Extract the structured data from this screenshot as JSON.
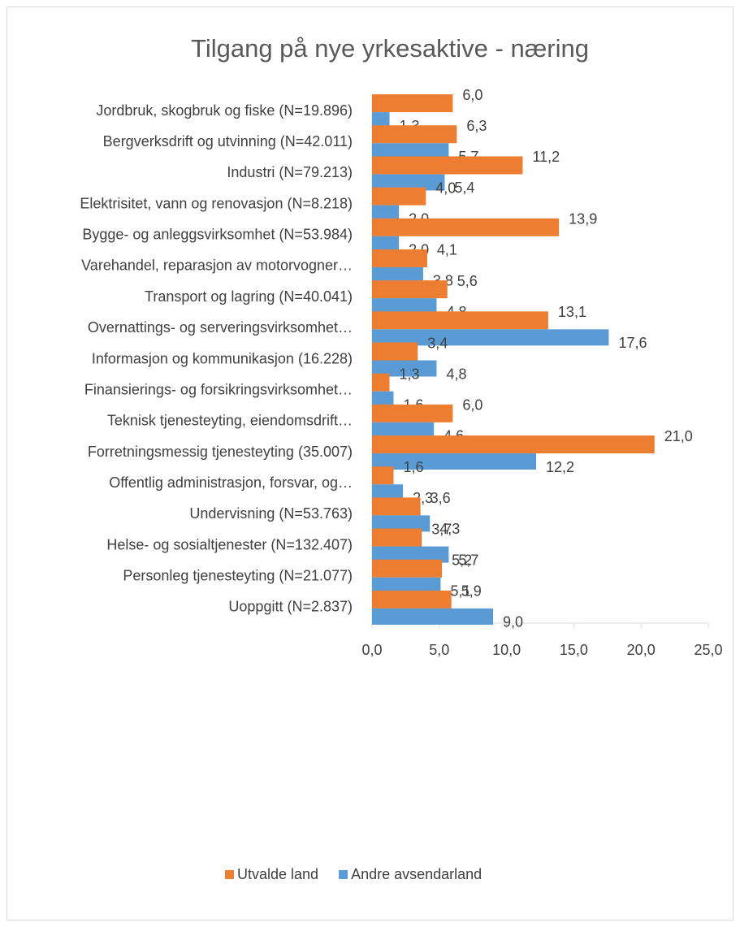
{
  "chart_data": {
    "type": "bar",
    "orientation": "horizontal",
    "title": "Tilgang på nye yrkesaktive - næring",
    "categories": [
      "Jordbruk, skogbruk og fiske (N=19.896)",
      "Bergverksdrift og utvinning (N=42.011)",
      "Industri (N=79.213)",
      "Elektrisitet, vann og renovasjon (N=8.218)",
      "Bygge- og anleggsvirksomhet (N=53.984)",
      "Varehandel, reparasjon av motorvogner…",
      "Transport og lagring (N=40.041)",
      "Overnattings- og serveringsvirksomhet…",
      "Informasjon og kommunikasjon (16.228)",
      "Finansierings- og forsikringsvirksomhet…",
      "Teknisk tjenesteyting, eiendomsdrift…",
      "Forretningsmessig tjenesteyting (35.007)",
      "Offentlig administrasjon, forsvar, og…",
      "Undervisning (N=53.763)",
      "Helse- og sosialtjenester (N=132.407)",
      "Personleg tjenesteyting (N=21.077)",
      "Uoppgitt (N=2.837)"
    ],
    "series": [
      {
        "name": "Utvalde land",
        "color": "#ed7d31",
        "values": [
          6.0,
          6.3,
          11.2,
          4.0,
          13.9,
          4.1,
          5.6,
          13.1,
          3.4,
          1.3,
          6.0,
          21.0,
          1.6,
          3.6,
          3.7,
          5.2,
          5.9
        ],
        "value_labels": [
          "6,0",
          "6,3",
          "11,2",
          "4,0",
          "13,9",
          "4,1",
          "5,6",
          "13,1",
          "3,4",
          "1,3",
          "6,0",
          "21,0",
          "1,6",
          "3,6",
          "3,7",
          "5,2",
          "5,9"
        ]
      },
      {
        "name": "Andre avsendarland",
        "color": "#5b9bd5",
        "values": [
          1.3,
          5.7,
          5.4,
          2.0,
          2.0,
          3.8,
          4.8,
          17.6,
          4.8,
          1.6,
          4.6,
          12.2,
          2.3,
          4.3,
          5.7,
          5.1,
          9.0
        ],
        "value_labels": [
          "1,3",
          "5,7",
          "5,4",
          "2,0",
          "2,0",
          "3,8",
          "4,8",
          "17,6",
          "4,8",
          "1,6",
          "4,6",
          "12,2",
          "2,3",
          "4,3",
          "5,7",
          "5,1",
          "9,0"
        ]
      }
    ],
    "xlim": [
      0,
      25
    ],
    "xticks": [
      {
        "value": 0,
        "label": "0,0"
      },
      {
        "value": 5,
        "label": "5,0"
      },
      {
        "value": 10,
        "label": "10,0"
      },
      {
        "value": 15,
        "label": "15,0"
      },
      {
        "value": 20,
        "label": "20,0"
      },
      {
        "value": 25,
        "label": "25,0"
      }
    ],
    "grid": false,
    "legend": "bottom"
  }
}
